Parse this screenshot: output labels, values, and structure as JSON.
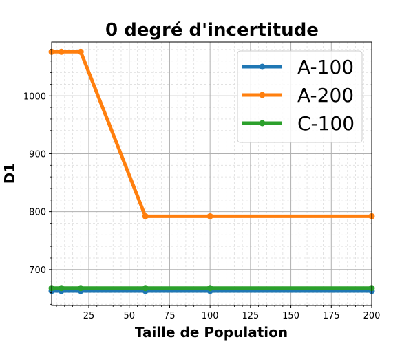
{
  "chart_data": {
    "type": "line",
    "title": "0 degré d'incertitude",
    "xlabel": "Taille de Population",
    "ylabel": "D1",
    "xlim": [
      2,
      200
    ],
    "ylim": [
      638,
      1093
    ],
    "xticks": [
      25,
      50,
      75,
      100,
      125,
      150,
      175,
      200
    ],
    "yticks": [
      700,
      800,
      900,
      1000
    ],
    "grid": true,
    "legend_position": "top-right",
    "x": [
      2,
      8,
      20,
      60,
      100,
      200
    ],
    "series": [
      {
        "name": "A-100",
        "color": "#1f77b4",
        "values": [
          663,
          663,
          663,
          663,
          663,
          663
        ]
      },
      {
        "name": "A-200",
        "color": "#ff7f0e",
        "values": [
          1076,
          1076,
          1076,
          792,
          792,
          792
        ]
      },
      {
        "name": "C-100",
        "color": "#2ca02c",
        "values": [
          668,
          668,
          668,
          668,
          668,
          668
        ]
      }
    ]
  }
}
